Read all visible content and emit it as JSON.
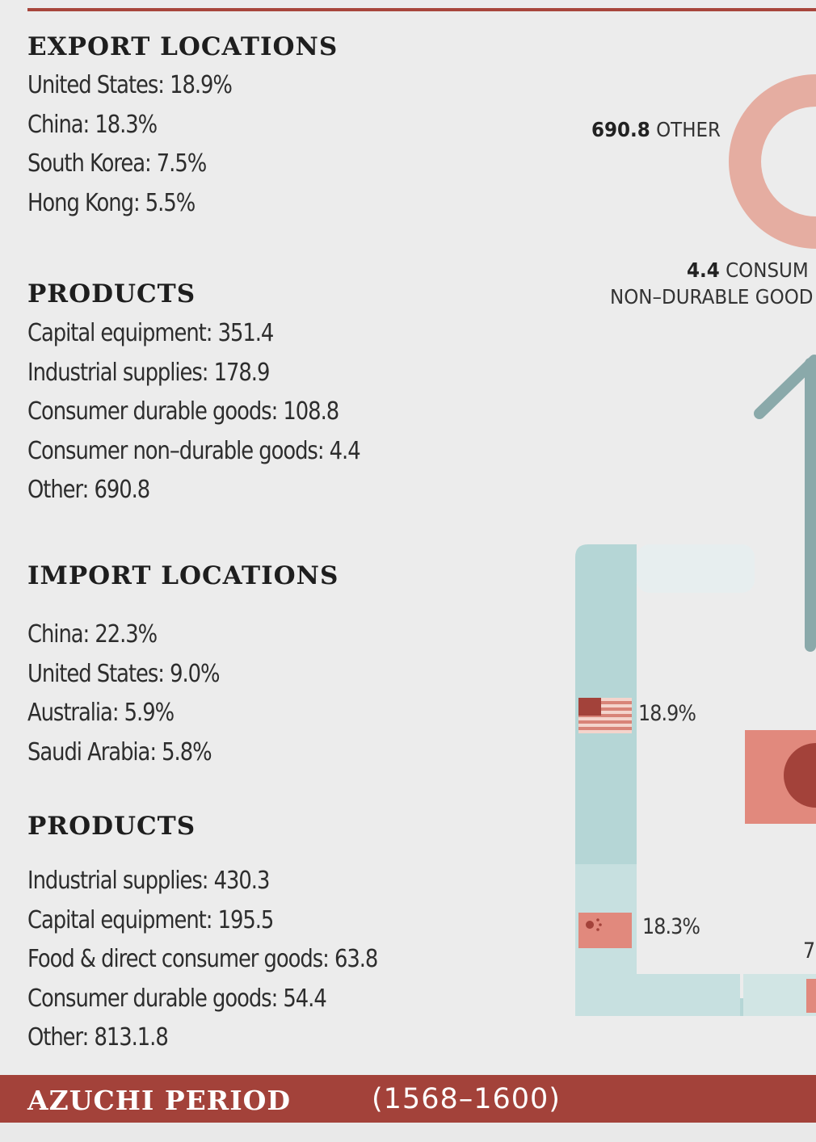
{
  "export": {
    "locations_heading": "EXPORT LOCATIONS",
    "locations": [
      "United States: 18.9%",
      "China: 18.3%",
      "South Korea: 7.5%",
      "Hong Kong: 5.5%"
    ],
    "products_heading": "PRODUCTS",
    "products": [
      "Capital equipment: 351.4",
      "Industrial supplies: 178.9",
      "Consumer durable goods: 108.8",
      "Consumer non–durable goods: 4.4",
      "Other: 690.8"
    ]
  },
  "import": {
    "locations_heading": "IMPORT LOCATIONS",
    "locations": [
      "China: 22.3%",
      "United States: 9.0%",
      "Australia: 5.9%",
      "Saudi Arabia: 5.8%"
    ],
    "products_heading": "PRODUCTS",
    "products": [
      "Industrial supplies: 430.3",
      "Capital equipment: 195.5",
      "Food & direct consumer goods: 63.8",
      "Consumer durable goods: 54.4",
      "Other: 813.1.8"
    ]
  },
  "graphic": {
    "other_value": "690.8",
    "other_label": "OTHER",
    "nondurable_value": "4.4",
    "nondurable_label_1": "CONSUM",
    "nondurable_label_2": "NON–DURABLE GOOD",
    "us_pct": "18.9%",
    "china_pct": "18.3%",
    "korea_pct_partial": "7.",
    "colors": {
      "salmon": "#e5ada1",
      "teal": "#b5d6d6",
      "teal_dark": "#8aa9aa",
      "red": "#a3423a"
    }
  },
  "footer": {
    "title": "AZUCHI PERIOD",
    "years": "(1568–1600)"
  }
}
